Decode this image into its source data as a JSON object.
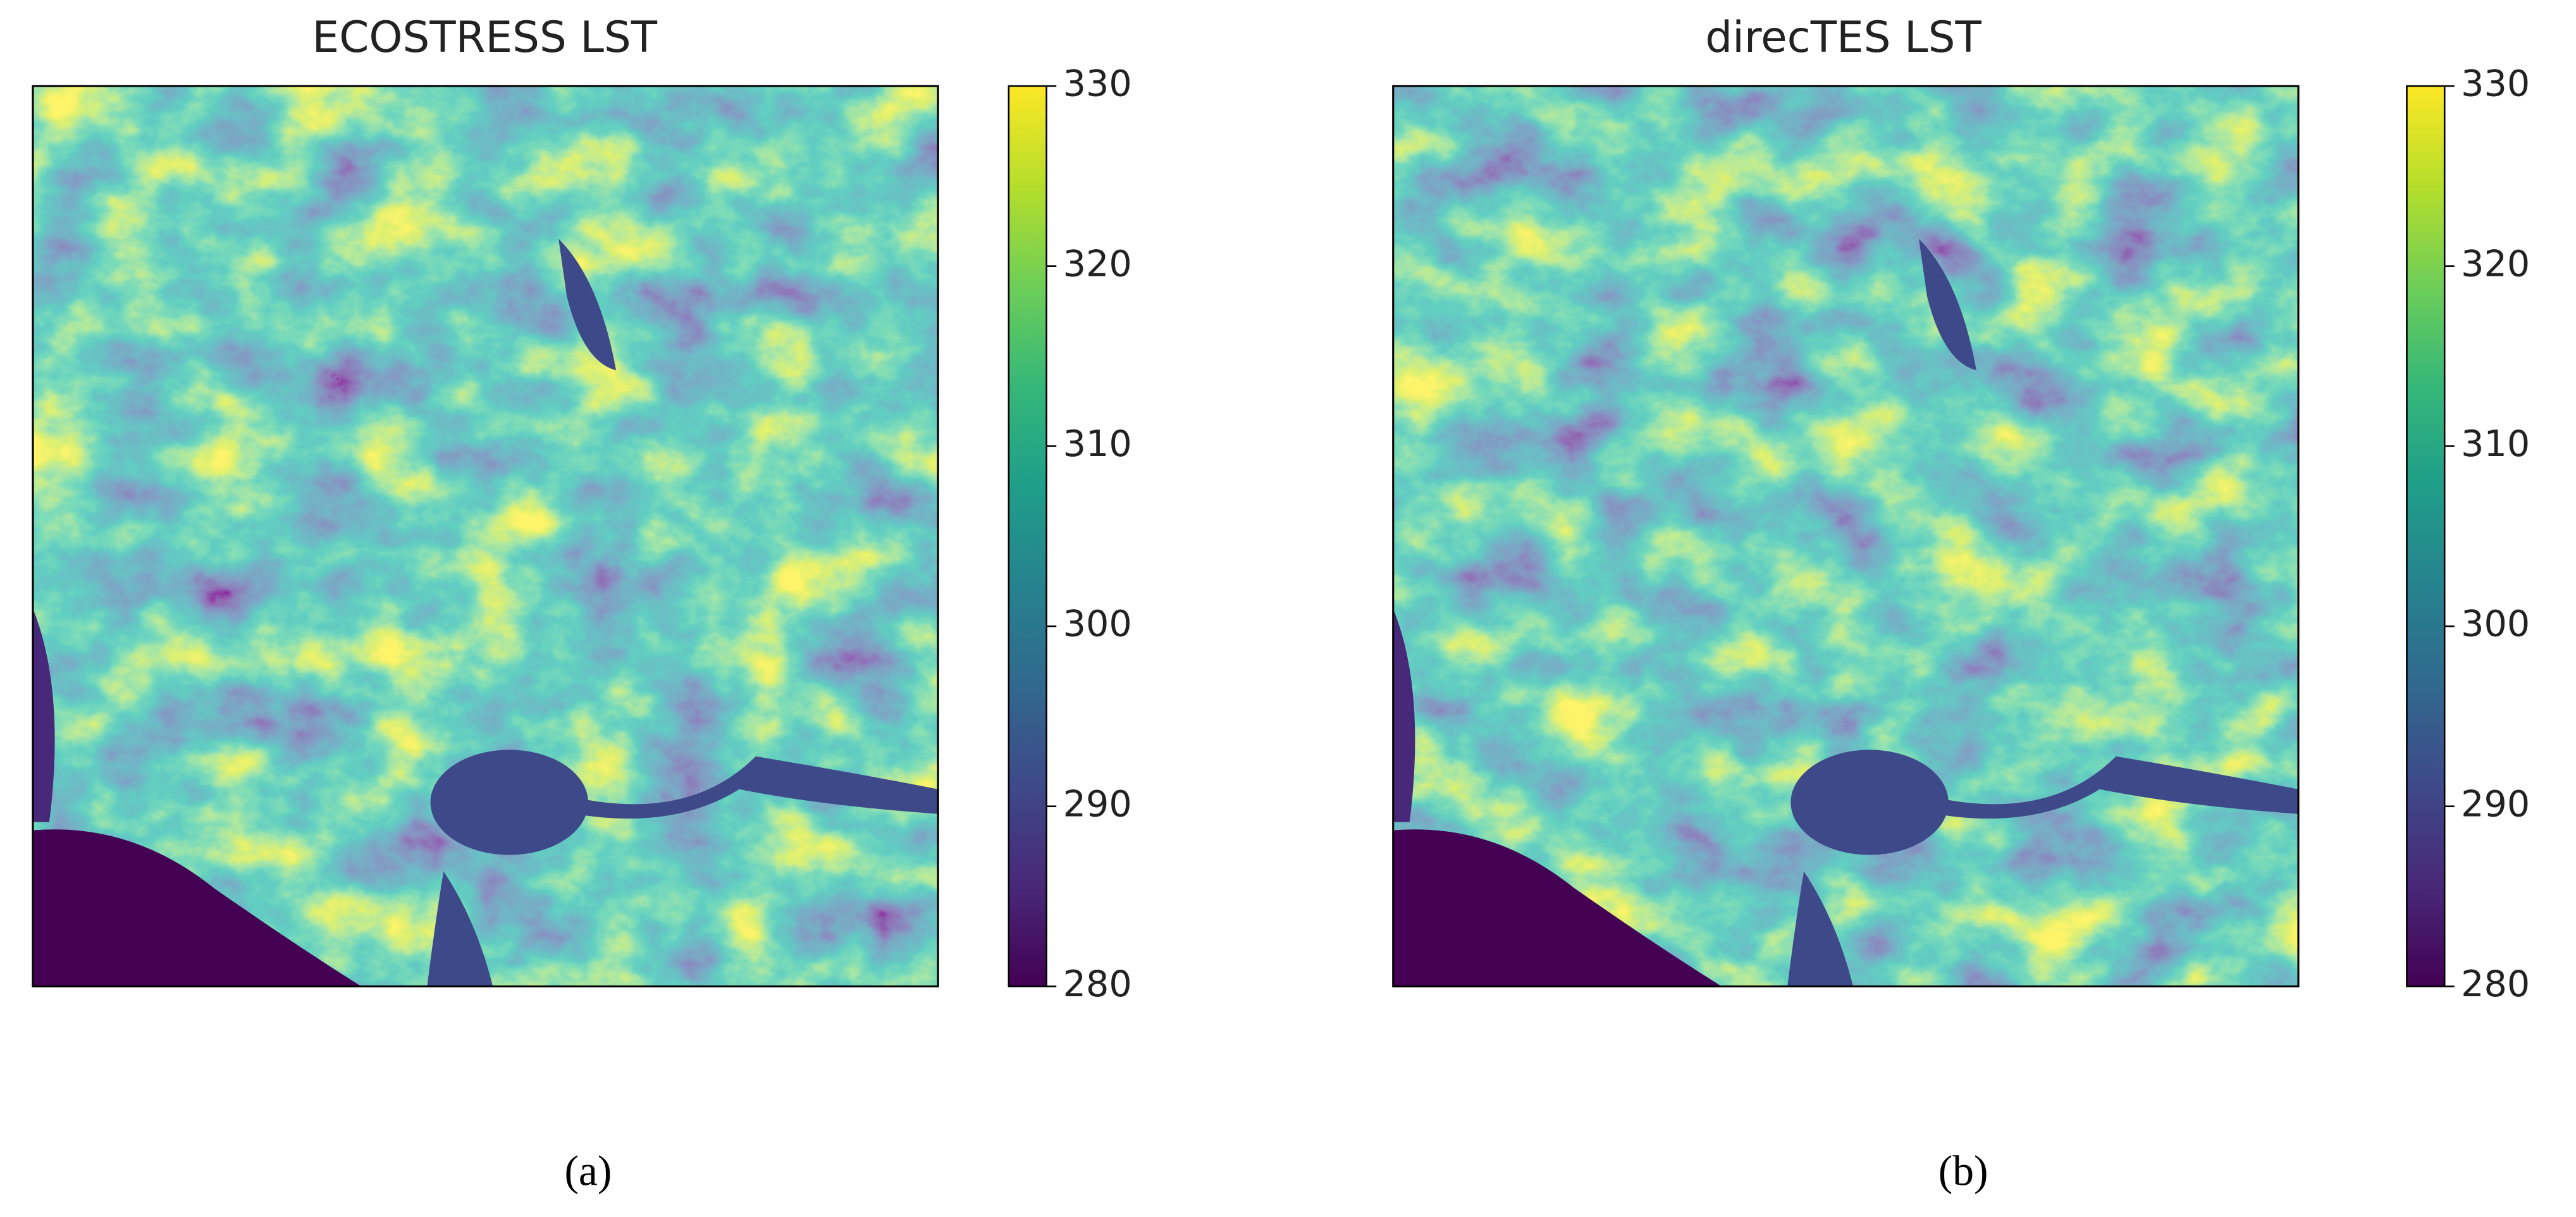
{
  "chart_data": [
    {
      "type": "heatmap",
      "title": "ECOSTRESS LST",
      "caption": "(a)",
      "zlim": [
        280,
        330
      ],
      "zticks": [
        280,
        290,
        300,
        310,
        320,
        330
      ],
      "colors": [
        "#440154",
        "#482878",
        "#3e4989",
        "#31688e",
        "#26828e",
        "#1f9e89",
        "#35b779",
        "#6ece58",
        "#b5de2b",
        "#fde725"
      ]
    },
    {
      "type": "heatmap",
      "title": "direcTES LST",
      "caption": "(b)",
      "zlim": [
        280,
        330
      ],
      "zticks": [
        280,
        290,
        300,
        310,
        320,
        330
      ],
      "colors": [
        "#440154",
        "#482878",
        "#3e4989",
        "#31688e",
        "#26828e",
        "#1f9e89",
        "#35b779",
        "#6ece58",
        "#b5de2b",
        "#fde725"
      ]
    }
  ]
}
